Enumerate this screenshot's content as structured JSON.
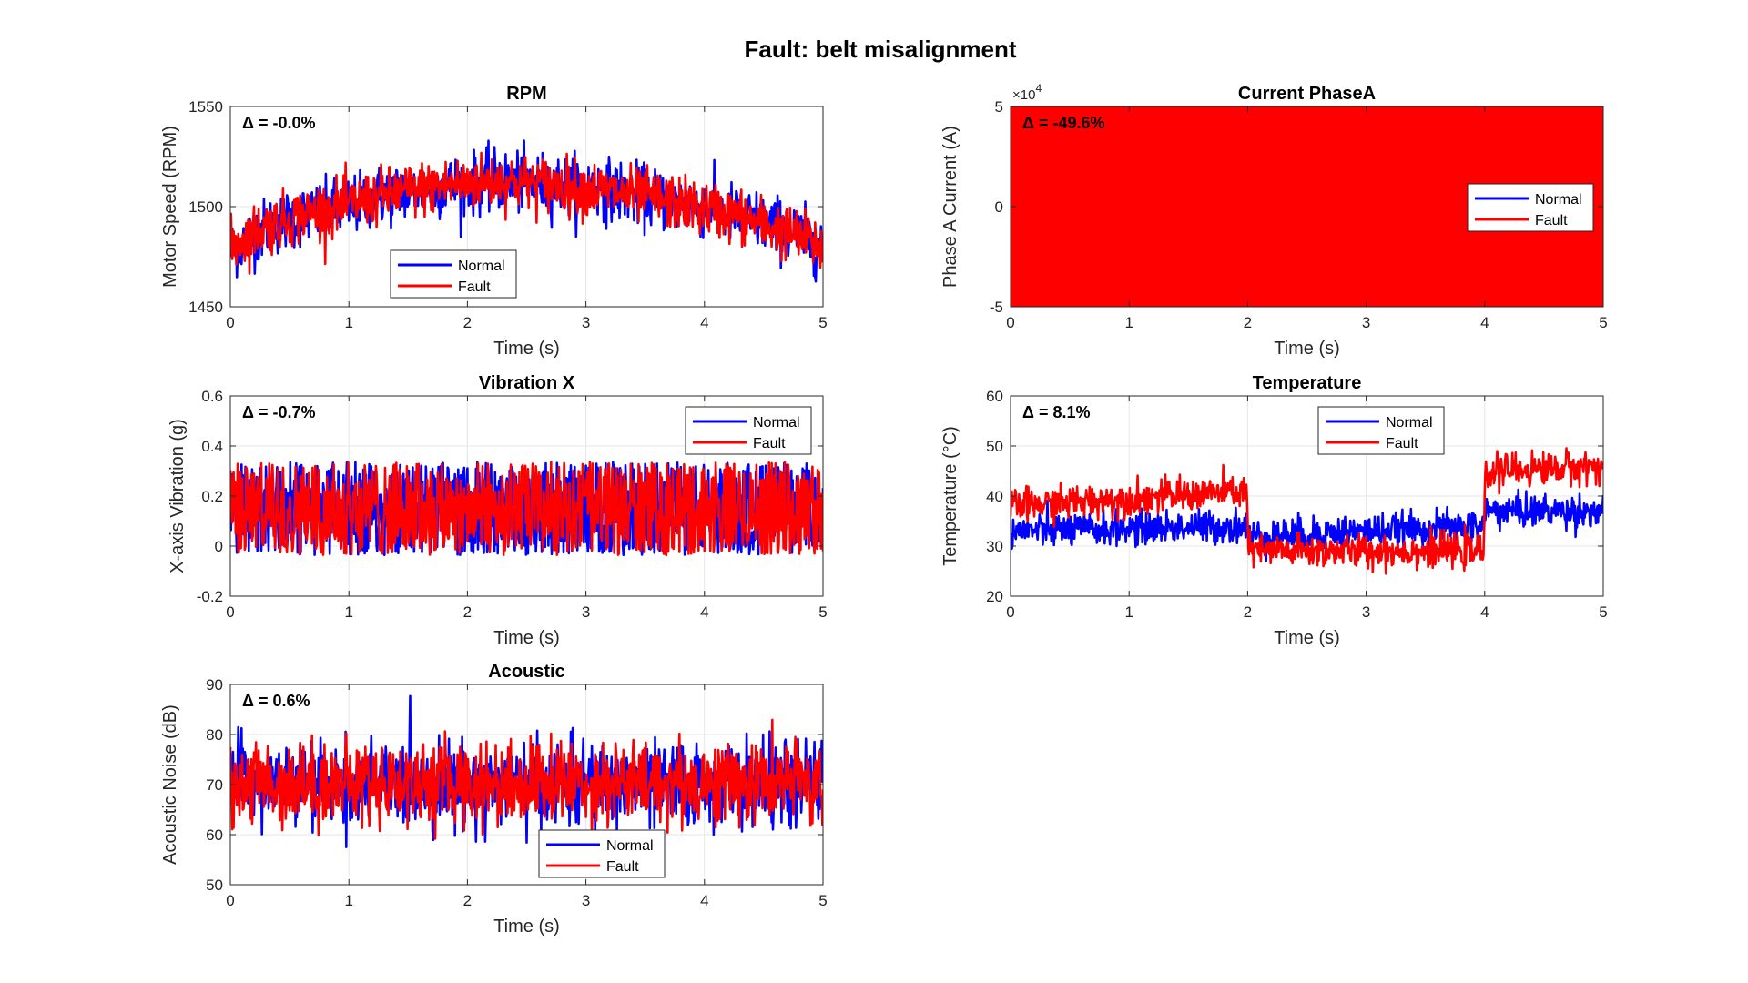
{
  "figure": {
    "title": "Fault: belt misalignment"
  },
  "colors": {
    "normal": "#0000ff",
    "fault": "#ff0000",
    "axes": "#262626",
    "grid": "#e6e6e6"
  },
  "chart_data": [
    {
      "id": "rpm",
      "type": "line",
      "title": "RPM",
      "xlabel": "Time (s)",
      "ylabel": "Motor Speed (RPM)",
      "xlim": [
        0,
        5
      ],
      "ylim": [
        1450,
        1550
      ],
      "xticks": [
        "0",
        "1",
        "2",
        "3",
        "4",
        "5"
      ],
      "yticks": [
        "1450",
        "1500",
        "1550"
      ],
      "annotation": "Δ = -0.0%",
      "legend": {
        "placement": "bottom-center",
        "entries": [
          "Normal",
          "Fault"
        ]
      },
      "grid": true,
      "series": [
        {
          "name": "Normal",
          "points": [
            [
              0,
              1478
            ],
            [
              0.25,
              1488
            ],
            [
              0.5,
              1494
            ],
            [
              0.75,
              1497
            ],
            [
              1,
              1500
            ],
            [
              1.25,
              1505
            ],
            [
              1.5,
              1508
            ],
            [
              1.75,
              1510
            ],
            [
              2,
              1511
            ],
            [
              2.25,
              1513
            ],
            [
              2.5,
              1512
            ],
            [
              2.75,
              1511
            ],
            [
              3,
              1510
            ],
            [
              3.25,
              1508
            ],
            [
              3.5,
              1505
            ],
            [
              3.75,
              1502
            ],
            [
              4,
              1500
            ],
            [
              4.25,
              1496
            ],
            [
              4.5,
              1492
            ],
            [
              4.75,
              1487
            ],
            [
              5,
              1480
            ]
          ],
          "noise": 10
        },
        {
          "name": "Fault",
          "points": [
            [
              0,
              1480
            ],
            [
              0.25,
              1489
            ],
            [
              0.5,
              1494
            ],
            [
              0.75,
              1498
            ],
            [
              1,
              1501
            ],
            [
              1.25,
              1505
            ],
            [
              1.5,
              1508
            ],
            [
              1.75,
              1510
            ],
            [
              2,
              1512
            ],
            [
              2.25,
              1513
            ],
            [
              2.5,
              1512
            ],
            [
              2.75,
              1511
            ],
            [
              3,
              1509
            ],
            [
              3.25,
              1507
            ],
            [
              3.5,
              1505
            ],
            [
              3.75,
              1502
            ],
            [
              4,
              1499
            ],
            [
              4.25,
              1496
            ],
            [
              4.5,
              1491
            ],
            [
              4.75,
              1486
            ],
            [
              5,
              1480
            ]
          ],
          "noise": 9
        }
      ]
    },
    {
      "id": "current",
      "type": "line",
      "title": "Current PhaseA",
      "xlabel": "Time (s)",
      "ylabel": "Phase A Current (A)",
      "xlim": [
        0,
        5
      ],
      "ylim": [
        -50000,
        50000
      ],
      "xticks": [
        "0",
        "1",
        "2",
        "3",
        "4",
        "5"
      ],
      "yticks": [
        "-5",
        "0",
        "5"
      ],
      "yscale_label": "10",
      "yscale_exponent": "4",
      "annotation": "Δ = -49.6%",
      "legend": {
        "placement": "right",
        "entries": [
          "Normal",
          "Fault"
        ]
      },
      "grid": true,
      "series": [
        {
          "name": "Normal",
          "points": [
            [
              0,
              0
            ],
            [
              5,
              0
            ]
          ],
          "amplitude": 50000
        },
        {
          "name": "Fault",
          "points": [
            [
              0,
              0
            ],
            [
              5,
              0
            ]
          ],
          "amplitude": 50000
        }
      ]
    },
    {
      "id": "vibration",
      "type": "line",
      "title": "Vibration X",
      "xlabel": "Time (s)",
      "ylabel": "X-axis Vibration (g)",
      "xlim": [
        0,
        5
      ],
      "ylim": [
        -0.2,
        0.6
      ],
      "xticks": [
        "0",
        "1",
        "2",
        "3",
        "4",
        "5"
      ],
      "yticks": [
        "-0.2",
        "0",
        "0.2",
        "0.4",
        "0.6"
      ],
      "annotation": "Δ = -0.7%",
      "legend": {
        "placement": "top-right",
        "entries": [
          "Normal",
          "Fault"
        ]
      },
      "grid": true,
      "series": [
        {
          "name": "Normal",
          "points": [
            [
              0,
              0.15
            ],
            [
              5,
              0.15
            ]
          ],
          "noise": 0.12
        },
        {
          "name": "Fault",
          "points": [
            [
              0,
              0.15
            ],
            [
              5,
              0.15
            ]
          ],
          "noise": 0.12
        }
      ]
    },
    {
      "id": "temperature",
      "type": "line",
      "title": "Temperature",
      "xlabel": "Time (s)",
      "ylabel": "Temperature (°C)",
      "xlim": [
        0,
        5
      ],
      "ylim": [
        20,
        60
      ],
      "xticks": [
        "0",
        "1",
        "2",
        "3",
        "4",
        "5"
      ],
      "yticks": [
        "20",
        "30",
        "40",
        "50",
        "60"
      ],
      "annotation": "Δ = 8.1%",
      "legend": {
        "placement": "top-center",
        "entries": [
          "Normal",
          "Fault"
        ]
      },
      "grid": true,
      "series": [
        {
          "name": "Normal",
          "points": [
            [
              0,
              33
            ],
            [
              1.99,
              34
            ],
            [
              2.01,
              32
            ],
            [
              3.99,
              34
            ],
            [
              4.01,
              37
            ],
            [
              5,
              37
            ]
          ],
          "noise": 2.2
        },
        {
          "name": "Fault",
          "points": [
            [
              0,
              38
            ],
            [
              1.99,
              41
            ],
            [
              2.01,
              29
            ],
            [
              3.99,
              29
            ],
            [
              4.01,
              45
            ],
            [
              5,
              46
            ]
          ],
          "noise": 2.2
        }
      ]
    },
    {
      "id": "acoustic",
      "type": "line",
      "title": "Acoustic",
      "xlabel": "Time (s)",
      "ylabel": "Acoustic Noise (dB)",
      "xlim": [
        0,
        5
      ],
      "ylim": [
        50,
        90
      ],
      "xticks": [
        "0",
        "1",
        "2",
        "3",
        "4",
        "5"
      ],
      "yticks": [
        "50",
        "60",
        "70",
        "80",
        "90"
      ],
      "annotation": "Δ = 0.6%",
      "legend": {
        "placement": "bottom-center",
        "entries": [
          "Normal",
          "Fault"
        ]
      },
      "grid": true,
      "series": [
        {
          "name": "Normal",
          "points": [
            [
              0,
              70
            ],
            [
              5,
              70
            ]
          ],
          "noise": 5.5
        },
        {
          "name": "Fault",
          "points": [
            [
              0,
              70.4
            ],
            [
              5,
              70.4
            ]
          ],
          "noise": 5.5
        }
      ]
    }
  ]
}
